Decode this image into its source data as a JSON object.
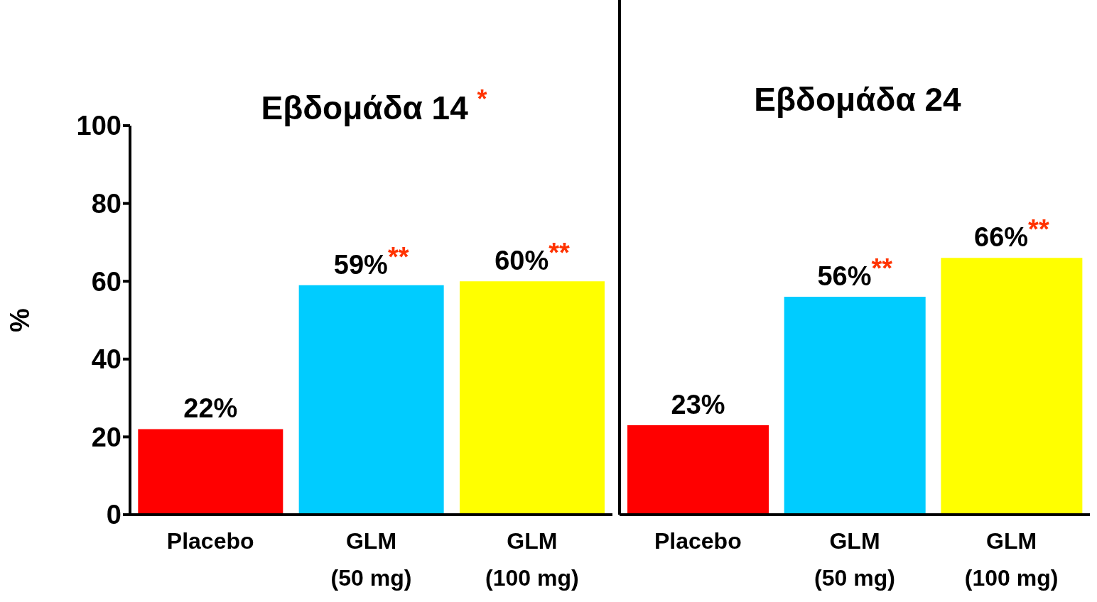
{
  "chart_data": [
    {
      "type": "bar",
      "title": "Εβδομάδα 14 $^{*}$",
      "ylabel": "%",
      "categories": [
        "Placebo",
        "GLM\n(50 mg)",
        "GLM\n(100 mg)"
      ],
      "values": [
        22,
        59,
        60
      ],
      "colors": [
        "#ff0000",
        "#00ccff",
        "#ffff00"
      ],
      "value_labels": [
        "22%",
        "59%$^{**}$",
        "60%$^{**}$"
      ],
      "ylim": [
        0,
        100
      ],
      "yticks": [
        0,
        20,
        40,
        60,
        80,
        100
      ]
    },
    {
      "type": "bar",
      "title": "Εβδομάδα 24",
      "categories": [
        "Placebo",
        "GLM\n(50 mg)",
        "GLM\n(100 mg)"
      ],
      "values": [
        23,
        56,
        66
      ],
      "colors": [
        "#ff0000",
        "#00ccff",
        "#ffff00"
      ],
      "value_labels": [
        "23%",
        "56%$^{**}$",
        "66%$^{**}$"
      ],
      "ylim": [
        0,
        100
      ],
      "yticks": [
        0,
        20,
        40,
        60,
        80,
        100
      ],
      "tick_labels": "x"
    }
  ]
}
